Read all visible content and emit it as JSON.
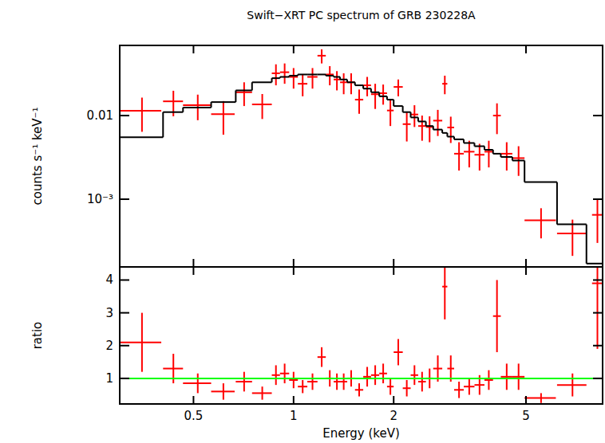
{
  "chart_data": [
    {
      "type": "scatter",
      "title": "Swift−XRT PC spectrum of GRB 230228A",
      "y_label": "counts s⁻¹ keV⁻¹",
      "log": true,
      "tick_labels": "y",
      "xlim": [
        0.3,
        8.5
      ],
      "ylim": [
        0.000155,
        0.069
      ],
      "xticks": [
        0.5,
        1,
        2,
        5
      ],
      "yticks": [
        {
          "value": 0.001,
          "label": "10⁻³"
        },
        0.01
      ],
      "series": [
        {
          "type": "scatter",
          "color": "#ff0000",
          "x": [
            0.35,
            0.435,
            0.515,
            0.615,
            0.71,
            0.805,
            0.885,
            0.94,
            1.0,
            1.065,
            1.14,
            1.215,
            1.285,
            1.35,
            1.415,
            1.49,
            1.575,
            1.665,
            1.76,
            1.86,
            1.955,
            2.065,
            2.19,
            2.31,
            2.435,
            2.565,
            2.715,
            2.85,
            2.97,
            3.145,
            3.375,
            3.625,
            3.865,
            4.09,
            4.375,
            4.75,
            5.55,
            6.9,
            8.2
          ],
          "x_errors": [
            0.05,
            0.03,
            0.05,
            0.05,
            0.04,
            0.055,
            0.025,
            0.03,
            0.03,
            0.035,
            0.04,
            0.035,
            0.035,
            0.03,
            0.035,
            0.04,
            0.045,
            0.045,
            0.05,
            0.05,
            0.045,
            0.065,
            0.06,
            0.06,
            0.065,
            0.065,
            0.085,
            0.05,
            0.07,
            0.105,
            0.125,
            0.125,
            0.115,
            0.11,
            0.175,
            0.2,
            0.6,
            0.7,
            0.3
          ],
          "values": [
            0.0114,
            0.0148,
            0.0133,
            0.0104,
            0.019,
            0.0136,
            0.032,
            0.033,
            0.029,
            0.024,
            0.029,
            0.052,
            0.031,
            0.027,
            0.025,
            0.025,
            0.0155,
            0.023,
            0.018,
            0.0185,
            0.0115,
            0.022,
            0.0079,
            0.0103,
            0.0075,
            0.0073,
            0.0087,
            0.024,
            0.0072,
            0.0035,
            0.0037,
            0.0034,
            0.0037,
            0.01,
            0.0035,
            0.0031,
            0.00056,
            0.00039,
            0.00065
          ],
          "errors": [
            0.005,
            0.005,
            0.0045,
            0.0045,
            0.006,
            0.0045,
            0.009,
            0.009,
            0.008,
            0.007,
            0.008,
            0.01,
            0.008,
            0.007,
            0.007,
            0.007,
            0.005,
            0.006,
            0.006,
            0.005,
            0.004,
            0.005,
            0.003,
            0.003,
            0.0025,
            0.0025,
            0.003,
            0.006,
            0.0025,
            0.0013,
            0.0013,
            0.0012,
            0.0013,
            0.004,
            0.0013,
            0.0012,
            0.00022,
            0.00018,
            0.00035
          ]
        },
        {
          "type": "step",
          "color": "#000000",
          "bins": [
            0.3,
            0.405,
            0.465,
            0.565,
            0.67,
            0.75,
            0.86,
            0.91,
            0.97,
            1.03,
            1.1,
            1.18,
            1.25,
            1.32,
            1.38,
            1.45,
            1.53,
            1.62,
            1.71,
            1.81,
            1.91,
            2.0,
            2.13,
            2.25,
            2.37,
            2.5,
            2.63,
            2.8,
            2.9,
            3.04,
            3.25,
            3.5,
            3.75,
            3.98,
            4.2,
            4.55,
            4.95,
            6.2,
            7.6,
            8.5
          ],
          "values": [
            0.0055,
            0.011,
            0.0125,
            0.0145,
            0.02,
            0.025,
            0.028,
            0.029,
            0.03,
            0.031,
            0.031,
            0.031,
            0.03,
            0.029,
            0.027,
            0.025,
            0.023,
            0.021,
            0.019,
            0.017,
            0.0155,
            0.013,
            0.011,
            0.0095,
            0.0085,
            0.0075,
            0.0068,
            0.0062,
            0.0056,
            0.0052,
            0.0047,
            0.0043,
            0.0039,
            0.0035,
            0.0032,
            0.0029,
            0.0016,
            0.0005,
            0.00017
          ]
        }
      ]
    },
    {
      "type": "scatter",
      "x_label": "Energy (keV)",
      "y_label": "ratio",
      "log": "x",
      "xlim": [
        0.3,
        8.5
      ],
      "ylim": [
        0.22,
        4.4
      ],
      "xticks": [
        0.5,
        1,
        2,
        5
      ],
      "yticks": [
        1,
        2,
        3,
        4
      ],
      "series": [
        {
          "type": "scatter",
          "color": "#ff0000",
          "x": [
            0.35,
            0.435,
            0.515,
            0.615,
            0.71,
            0.805,
            0.885,
            0.94,
            1.0,
            1.065,
            1.14,
            1.215,
            1.285,
            1.35,
            1.415,
            1.49,
            1.575,
            1.665,
            1.76,
            1.86,
            1.955,
            2.065,
            2.19,
            2.31,
            2.435,
            2.565,
            2.715,
            2.85,
            2.97,
            3.145,
            3.375,
            3.625,
            3.865,
            4.09,
            4.375,
            4.75,
            5.55,
            6.9,
            8.2
          ],
          "x_errors": [
            0.05,
            0.03,
            0.05,
            0.05,
            0.04,
            0.055,
            0.025,
            0.03,
            0.03,
            0.035,
            0.04,
            0.035,
            0.035,
            0.03,
            0.035,
            0.04,
            0.045,
            0.045,
            0.05,
            0.05,
            0.045,
            0.065,
            0.06,
            0.06,
            0.065,
            0.065,
            0.085,
            0.05,
            0.07,
            0.105,
            0.125,
            0.125,
            0.115,
            0.11,
            0.175,
            0.2,
            0.6,
            0.7,
            0.3
          ],
          "values": [
            2.1,
            1.3,
            0.85,
            0.6,
            0.9,
            0.55,
            1.1,
            1.15,
            0.95,
            0.75,
            0.9,
            1.65,
            1.0,
            0.9,
            0.9,
            1.0,
            0.65,
            1.05,
            1.1,
            1.15,
            0.75,
            1.8,
            0.7,
            1.1,
            0.9,
            1.0,
            1.3,
            3.8,
            1.3,
            0.65,
            0.75,
            0.8,
            0.95,
            2.9,
            1.05,
            1.05,
            0.4,
            0.8,
            3.9
          ],
          "errors": [
            0.9,
            0.45,
            0.3,
            0.25,
            0.3,
            0.2,
            0.3,
            0.3,
            0.25,
            0.2,
            0.25,
            0.3,
            0.25,
            0.25,
            0.25,
            0.25,
            0.2,
            0.3,
            0.3,
            0.3,
            0.25,
            0.4,
            0.25,
            0.3,
            0.3,
            0.3,
            0.4,
            1.0,
            0.4,
            0.25,
            0.25,
            0.3,
            0.3,
            1.1,
            0.4,
            0.4,
            0.15,
            0.35,
            2.0
          ]
        },
        {
          "type": "hline",
          "color": "#00ff00",
          "values": [
            1
          ]
        }
      ]
    }
  ]
}
